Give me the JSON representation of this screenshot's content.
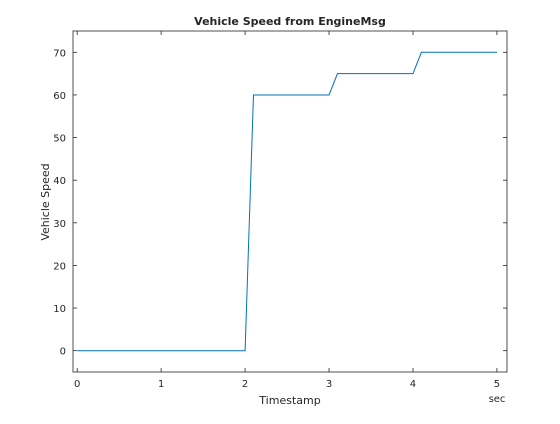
{
  "chart_data": {
    "type": "line",
    "title": "Vehicle Speed from EngineMsg",
    "xlabel": "Timestamp",
    "ylabel": "Vehicle Speed",
    "x_unit_label": "sec",
    "xlim": [
      -0.05,
      5.12
    ],
    "ylim": [
      -5,
      75
    ],
    "x_ticks": [
      0,
      1,
      2,
      3,
      4,
      5
    ],
    "y_ticks": [
      0,
      10,
      20,
      30,
      40,
      50,
      60,
      70
    ],
    "grid": false,
    "line_color": "#0072BD",
    "series": [
      {
        "x": [
          0,
          2.0,
          2.1,
          3.0,
          3.1,
          4.0,
          4.1,
          5.0
        ],
        "y": [
          0,
          0,
          60,
          60,
          65,
          65,
          70,
          70
        ]
      }
    ]
  }
}
